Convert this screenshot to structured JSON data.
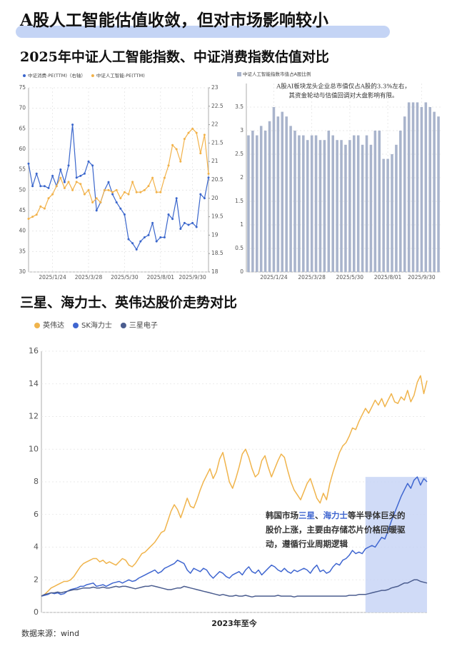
{
  "header": {
    "title": "A股人工智能估值收敛，但对市场影响较小",
    "section1": "2025年中证人工智能指数、中证消费指数估值对比",
    "section2": "三星、海力士、英伟达股价走势对比"
  },
  "source": "数据来源：wind",
  "chart_data": [
    {
      "type": "line",
      "markers": true,
      "grid": true,
      "legend": "top-left",
      "categories": [
        null,
        null,
        null,
        null,
        null,
        null,
        "2025/1/24",
        null,
        null,
        null,
        null,
        null,
        null,
        null,
        null,
        "2025/3/28",
        null,
        null,
        null,
        null,
        null,
        null,
        null,
        null,
        "2025/5/30",
        null,
        null,
        null,
        null,
        null,
        null,
        null,
        null,
        "2025/8/01",
        null,
        null,
        null,
        null,
        null,
        null,
        null,
        "2025/9/30",
        null,
        null,
        null,
        null
      ],
      "series": [
        {
          "name": "中证消费-PE(TTM)（右轴）",
          "color": "#3a66cc",
          "axis": "y2",
          "values": [
            20.94,
            20.33,
            20.67,
            20.33,
            20.33,
            20.28,
            20.61,
            20.33,
            20.78,
            20.44,
            20.89,
            22.0,
            20.56,
            20.61,
            20.67,
            21.0,
            20.89,
            19.67,
            19.89,
            20.22,
            20.44,
            20.11,
            19.89,
            19.72,
            19.56,
            18.89,
            18.78,
            18.61,
            18.83,
            18.94,
            19.0,
            19.33,
            18.83,
            18.94,
            18.94,
            19.56,
            19.44,
            20.0,
            19.17,
            19.33,
            19.28,
            19.33,
            19.22,
            20.11,
            20.0,
            20.56
          ]
        },
        {
          "name": "中证人工智能-PE(TTM)",
          "color": "#f2b24a",
          "values": [
            43,
            43.5,
            44,
            46,
            45.5,
            48,
            49,
            51,
            53,
            50.5,
            52,
            50,
            52,
            51.5,
            49,
            50,
            47,
            48,
            47,
            50,
            50,
            49.5,
            50,
            48,
            49.5,
            49,
            52,
            49.5,
            49.5,
            50,
            51,
            53,
            49.5,
            49.5,
            53,
            56,
            61,
            60,
            57,
            62.5,
            64,
            65,
            64,
            59,
            63.5,
            54
          ]
        }
      ],
      "ylim": [
        30,
        75
      ],
      "yticks": [
        30,
        35,
        40,
        45,
        50,
        55,
        60,
        65,
        70,
        75
      ],
      "y2lim": [
        18,
        23
      ],
      "y2ticks": [
        18,
        18.5,
        19,
        19.5,
        20,
        20.5,
        21,
        21.5,
        22,
        22.5,
        23
      ]
    },
    {
      "type": "bar",
      "grid": true,
      "legend": "top-left",
      "annotation": [
        "A股AI板块龙头企业总市值仅占A股的3.3%左右，",
        "其资金轮动与估值回调对大盘影响有限。"
      ],
      "categories": [
        null,
        null,
        null,
        null,
        null,
        null,
        "2025/1/24",
        null,
        null,
        null,
        null,
        null,
        null,
        null,
        null,
        "2025/3/28",
        null,
        null,
        null,
        null,
        null,
        null,
        null,
        null,
        "2025/5/30",
        null,
        null,
        null,
        null,
        null,
        null,
        null,
        null,
        "2025/8/01",
        null,
        null,
        null,
        null,
        null,
        null,
        null,
        "2025/9/30",
        null,
        null,
        null,
        null
      ],
      "series": [
        {
          "name": "中证人工智能指数市值占A股比例",
          "color": "#a9b4cc",
          "values": [
            2.9,
            3.0,
            2.9,
            3.1,
            3.0,
            3.2,
            3.5,
            3.3,
            3.4,
            3.3,
            3.1,
            3.0,
            2.9,
            2.9,
            2.8,
            2.9,
            2.9,
            2.8,
            2.8,
            3.0,
            2.9,
            2.8,
            2.8,
            2.7,
            2.8,
            2.9,
            2.9,
            2.7,
            2.9,
            2.7,
            3.0,
            3.0,
            2.4,
            2.4,
            2.5,
            2.7,
            3.0,
            3.3,
            3.6,
            3.6,
            3.6,
            3.5,
            3.6,
            3.5,
            3.4,
            3.3
          ]
        }
      ],
      "ylim": [
        0,
        4
      ],
      "yticks": [
        0,
        0.5,
        1,
        1.5,
        2,
        2.5,
        3,
        3.5
      ]
    },
    {
      "type": "line",
      "grid": true,
      "legend": "top-left",
      "xlabel": "2023年至今",
      "highlight": {
        "x": [
          100,
          119
        ],
        "y": [
          0,
          8.3
        ],
        "color": "#c8d5f6"
      },
      "annotation": [
        {
          "text": "韩国市场",
          "emphasis": false
        },
        {
          "text": "三星",
          "emphasis": true
        },
        {
          "text": "、",
          "emphasis": false
        },
        {
          "text": "海力士",
          "emphasis": true
        },
        {
          "text": "等半导体巨头的股价上涨，主要由存储芯片价格回暖驱动，遵循行业周期逻辑",
          "emphasis": false
        }
      ],
      "emphasis_color": "#3f66d0",
      "series": [
        {
          "name": "英伟达",
          "color": "#f0b44c",
          "values": [
            1.0,
            1.1,
            1.3,
            1.5,
            1.6,
            1.7,
            1.8,
            1.9,
            1.9,
            2.0,
            2.2,
            2.5,
            2.8,
            3.0,
            3.1,
            3.2,
            3.3,
            3.3,
            3.1,
            3.2,
            3.0,
            3.1,
            3.0,
            2.9,
            3.1,
            3.3,
            3.2,
            2.9,
            2.8,
            3.0,
            3.3,
            3.6,
            3.7,
            3.9,
            4.1,
            4.3,
            4.6,
            4.9,
            5.0,
            5.6,
            6.2,
            6.6,
            6.3,
            5.8,
            6.4,
            7.0,
            6.5,
            6.4,
            6.9,
            7.5,
            8.0,
            8.4,
            8.8,
            8.2,
            8.6,
            9.4,
            9.8,
            8.9,
            8.0,
            7.6,
            8.2,
            8.9,
            9.7,
            10.0,
            9.5,
            8.8,
            8.3,
            8.5,
            9.3,
            9.6,
            8.9,
            8.3,
            8.8,
            9.3,
            9.7,
            9.5,
            8.7,
            8.0,
            7.5,
            7.2,
            6.9,
            7.4,
            7.9,
            8.2,
            7.6,
            7.0,
            6.7,
            7.3,
            6.9,
            7.9,
            8.6,
            9.2,
            9.8,
            10.2,
            10.4,
            10.8,
            11.3,
            11.2,
            11.7,
            12.1,
            12.5,
            12.2,
            12.6,
            13.0,
            12.7,
            13.1,
            12.6,
            13.0,
            13.4,
            12.9,
            12.8,
            13.2,
            13.0,
            13.6,
            12.9,
            13.3,
            14.1,
            14.5,
            13.4,
            14.2
          ]
        },
        {
          "name": "SK海力士",
          "color": "#3f66d0",
          "values": [
            1.0,
            1.05,
            1.1,
            1.2,
            1.15,
            1.2,
            1.1,
            1.15,
            1.3,
            1.4,
            1.45,
            1.5,
            1.6,
            1.6,
            1.7,
            1.75,
            1.8,
            1.6,
            1.65,
            1.7,
            1.6,
            1.7,
            1.8,
            1.85,
            1.9,
            1.8,
            1.9,
            2.0,
            1.9,
            1.95,
            2.1,
            2.2,
            2.3,
            2.4,
            2.5,
            2.6,
            2.4,
            2.5,
            2.7,
            2.8,
            2.9,
            3.0,
            3.2,
            3.1,
            3.0,
            2.6,
            2.4,
            2.7,
            2.6,
            2.5,
            2.7,
            2.6,
            2.3,
            2.1,
            2.3,
            2.5,
            2.4,
            2.2,
            2.1,
            2.3,
            2.4,
            2.5,
            2.3,
            2.6,
            2.8,
            2.5,
            2.4,
            2.6,
            2.3,
            2.5,
            2.7,
            2.9,
            2.8,
            2.6,
            2.5,
            2.7,
            2.5,
            2.4,
            2.6,
            2.5,
            2.6,
            2.7,
            2.6,
            2.4,
            2.7,
            2.9,
            2.5,
            2.6,
            2.4,
            2.5,
            2.8,
            3.0,
            2.9,
            3.2,
            3.3,
            3.5,
            3.8,
            3.6,
            3.7,
            3.6,
            3.9,
            4.0,
            4.1,
            4.0,
            4.3,
            4.6,
            4.5,
            5.0,
            5.6,
            6.1,
            6.6,
            7.1,
            7.5,
            7.9,
            7.6,
            8.1,
            8.3,
            7.8,
            8.2,
            8.0
          ]
        },
        {
          "name": "三星电子",
          "color": "#4b5d8f",
          "values": [
            1.0,
            1.1,
            1.15,
            1.2,
            1.2,
            1.25,
            1.2,
            1.25,
            1.3,
            1.35,
            1.4,
            1.4,
            1.45,
            1.5,
            1.5,
            1.5,
            1.55,
            1.5,
            1.5,
            1.55,
            1.5,
            1.5,
            1.55,
            1.6,
            1.55,
            1.6,
            1.6,
            1.55,
            1.5,
            1.45,
            1.5,
            1.55,
            1.6,
            1.6,
            1.65,
            1.6,
            1.55,
            1.5,
            1.45,
            1.4,
            1.4,
            1.45,
            1.5,
            1.5,
            1.6,
            1.55,
            1.5,
            1.45,
            1.4,
            1.35,
            1.3,
            1.25,
            1.2,
            1.15,
            1.1,
            1.05,
            1.1,
            1.05,
            1.0,
            1.0,
            1.05,
            1.0,
            1.0,
            1.05,
            1.0,
            0.95,
            1.0,
            1.0,
            1.0,
            1.0,
            1.0,
            1.0,
            1.0,
            1.05,
            1.0,
            1.0,
            1.0,
            1.0,
            0.95,
            1.0,
            1.0,
            1.0,
            1.0,
            1.0,
            1.0,
            1.0,
            1.0,
            1.0,
            1.0,
            1.0,
            1.0,
            1.0,
            1.0,
            1.0,
            1.0,
            1.05,
            1.05,
            1.05,
            1.1,
            1.1,
            1.1,
            1.15,
            1.2,
            1.25,
            1.3,
            1.35,
            1.35,
            1.4,
            1.5,
            1.55,
            1.6,
            1.7,
            1.8,
            1.8,
            1.9,
            2.0,
            2.0,
            1.9,
            1.85,
            1.8
          ]
        }
      ],
      "ylim": [
        0,
        16
      ],
      "yticks": [
        0,
        2,
        4,
        6,
        8,
        10,
        12,
        14,
        16
      ]
    }
  ]
}
